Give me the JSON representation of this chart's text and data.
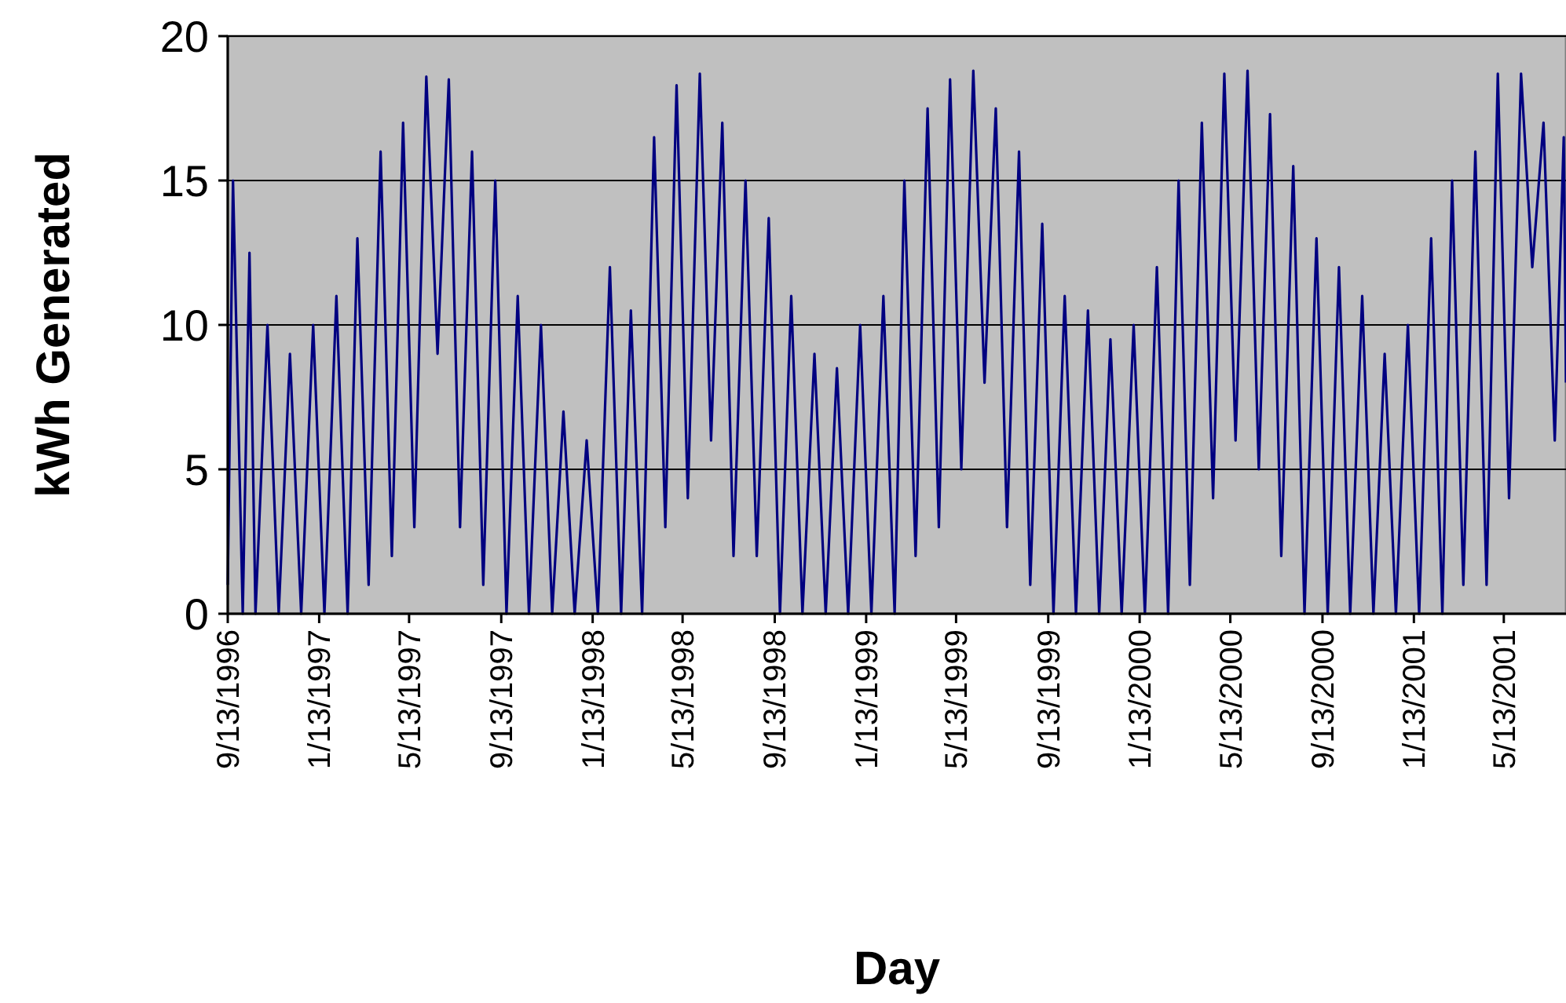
{
  "chart_data": {
    "type": "line",
    "xlabel": "Day",
    "ylabel": "kWh Generated",
    "x": [
      "1996-09-13",
      "1996-09-20",
      "1996-10-03",
      "1996-10-12",
      "1996-10-20",
      "1996-11-05",
      "1996-11-20",
      "1996-12-05",
      "1996-12-20",
      "1997-01-05",
      "1997-01-20",
      "1997-02-05",
      "1997-02-20",
      "1997-03-05",
      "1997-03-20",
      "1997-04-05",
      "1997-04-20",
      "1997-05-05",
      "1997-05-20",
      "1997-06-05",
      "1997-06-20",
      "1997-07-05",
      "1997-07-20",
      "1997-08-05",
      "1997-08-20",
      "1997-09-05",
      "1997-09-20",
      "1997-10-05",
      "1997-10-20",
      "1997-11-05",
      "1997-11-20",
      "1997-12-05",
      "1997-12-20",
      "1998-01-05",
      "1998-01-20",
      "1998-02-05",
      "1998-02-20",
      "1998-03-05",
      "1998-03-20",
      "1998-04-05",
      "1998-04-20",
      "1998-05-05",
      "1998-05-20",
      "1998-06-05",
      "1998-06-20",
      "1998-07-05",
      "1998-07-20",
      "1998-08-05",
      "1998-08-20",
      "1998-09-05",
      "1998-09-20",
      "1998-10-05",
      "1998-10-20",
      "1998-11-05",
      "1998-11-20",
      "1998-12-05",
      "1998-12-20",
      "1999-01-05",
      "1999-01-20",
      "1999-02-05",
      "1999-02-20",
      "1999-03-05",
      "1999-03-20",
      "1999-04-05",
      "1999-04-20",
      "1999-05-05",
      "1999-05-20",
      "1999-06-05",
      "1999-06-20",
      "1999-07-05",
      "1999-07-20",
      "1999-08-05",
      "1999-08-20",
      "1999-09-05",
      "1999-09-20",
      "1999-10-05",
      "1999-10-20",
      "1999-11-05",
      "1999-11-20",
      "1999-12-05",
      "1999-12-20",
      "2000-01-05",
      "2000-01-20",
      "2000-02-05",
      "2000-02-20",
      "2000-03-05",
      "2000-03-20",
      "2000-04-05",
      "2000-04-20",
      "2000-05-05",
      "2000-05-20",
      "2000-06-05",
      "2000-06-20",
      "2000-07-05",
      "2000-07-20",
      "2000-08-05",
      "2000-08-20",
      "2000-09-05",
      "2000-09-20",
      "2000-10-05",
      "2000-10-20",
      "2000-11-05",
      "2000-11-20",
      "2000-12-05",
      "2000-12-20",
      "2001-01-05",
      "2001-01-20",
      "2001-02-05",
      "2001-02-20",
      "2001-03-05",
      "2001-03-20",
      "2001-04-05",
      "2001-04-20",
      "2001-05-05",
      "2001-05-20",
      "2001-06-05",
      "2001-06-20",
      "2001-07-05",
      "2001-07-20",
      "2001-08-01",
      "2001-08-04"
    ],
    "series": [
      {
        "color": "#000080",
        "values": [
          1,
          15,
          0,
          12.5,
          0,
          10,
          0,
          9,
          0,
          10,
          0,
          11,
          0,
          13,
          1,
          16,
          2,
          17,
          3,
          18.6,
          9,
          18.5,
          3,
          16,
          1,
          15,
          0,
          11,
          0,
          10,
          0,
          7,
          0,
          6,
          0,
          12,
          0,
          10.5,
          0,
          16.5,
          3,
          18.3,
          4,
          18.7,
          6,
          17,
          2,
          15,
          2,
          13.7,
          0,
          11,
          0,
          9,
          0,
          8.5,
          0,
          10,
          0,
          11,
          0,
          15,
          2,
          17.5,
          3,
          18.5,
          5,
          18.8,
          8,
          17.5,
          3,
          16,
          1,
          13.5,
          0,
          11,
          0,
          10.5,
          0,
          9.5,
          0,
          10,
          0,
          12,
          0,
          15,
          1,
          17,
          4,
          18.7,
          6,
          18.8,
          5,
          17.3,
          2,
          15.5,
          0,
          13,
          0,
          12,
          0,
          11,
          0,
          9,
          0,
          10,
          0,
          13,
          0,
          15,
          1,
          16,
          1,
          18.7,
          4,
          18.7,
          12,
          17,
          6,
          16.5,
          8
        ]
      }
    ],
    "xlim": [
      "1996-09-13",
      "2001-08-04"
    ],
    "xticks": [
      {
        "value": "1996-09-13",
        "label": "9/13/1996"
      },
      {
        "value": "1997-01-13",
        "label": "1/13/1997"
      },
      {
        "value": "1997-05-13",
        "label": "5/13/1997"
      },
      {
        "value": "1997-09-13",
        "label": "9/13/1997"
      },
      {
        "value": "1998-01-13",
        "label": "1/13/1998"
      },
      {
        "value": "1998-05-13",
        "label": "5/13/1998"
      },
      {
        "value": "1998-09-13",
        "label": "9/13/1998"
      },
      {
        "value": "1999-01-13",
        "label": "1/13/1999"
      },
      {
        "value": "1999-05-13",
        "label": "5/13/1999"
      },
      {
        "value": "1999-09-13",
        "label": "9/13/1999"
      },
      {
        "value": "2000-01-13",
        "label": "1/13/2000"
      },
      {
        "value": "2000-05-13",
        "label": "5/13/2000"
      },
      {
        "value": "2000-09-13",
        "label": "9/13/2000"
      },
      {
        "value": "2001-01-13",
        "label": "1/13/2001"
      },
      {
        "value": "2001-05-13",
        "label": "5/13/2001"
      }
    ],
    "ylim": [
      0,
      20
    ],
    "yticks": [
      0,
      5,
      10,
      15,
      20
    ],
    "grid": "y",
    "marker": "none",
    "line_style": "solid"
  }
}
